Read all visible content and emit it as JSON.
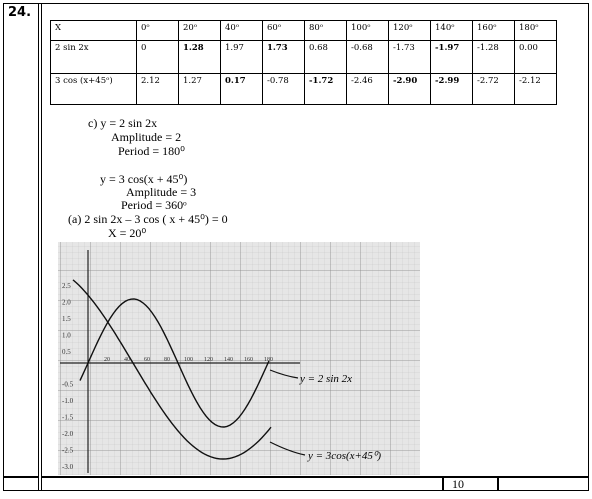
{
  "question_number": "24.",
  "table": {
    "rows": [
      [
        "X",
        "0ᵒ",
        "20ᵒ",
        "40ᵒ",
        "60ᵒ",
        "80ᵒ",
        "100ᵒ",
        "120ᵒ",
        "140ᵒ",
        "160ᵒ",
        "180ᵒ"
      ],
      [
        "2 sin 2x",
        "0",
        "1.28",
        "1.97",
        "1.73",
        "0.68",
        "-0.68",
        "-1.73",
        "-1.97",
        "-1.28",
        "0.00"
      ],
      [
        "3 cos (x+45ᵒ)",
        "2.12",
        "1.27",
        "0.17",
        "-0.78",
        "-1.72",
        "-2.46",
        "-2.90",
        "-2.99",
        "-2.72",
        "-2.12"
      ]
    ]
  },
  "answer": {
    "lines": [
      "c) y = 2 sin 2x",
      "Amplitude = 2",
      "Period = 180⁰",
      "y = 3 cos(x + 45⁰)",
      "Amplitude  = 3",
      "Period = 360ᵒ",
      "(a)  2 sin 2x – 3 cos ( x + 45⁰)   = 0",
      "X = 20⁰"
    ]
  },
  "graph": {
    "y_labels": [
      "2.5",
      "2.0",
      "1.5",
      "1.0",
      "0.5",
      "-0.5",
      "-1.0",
      "-1.5",
      "-2.0",
      "-2.5",
      "-3.0"
    ],
    "x_labels": [
      "20",
      "40",
      "60",
      "80",
      "100",
      "120",
      "140",
      "160",
      "180"
    ],
    "curve_labels": [
      "y = 2 sin 2x",
      "y = 3cos(x+45⁰)"
    ]
  },
  "footer": {
    "marks": "10"
  }
}
